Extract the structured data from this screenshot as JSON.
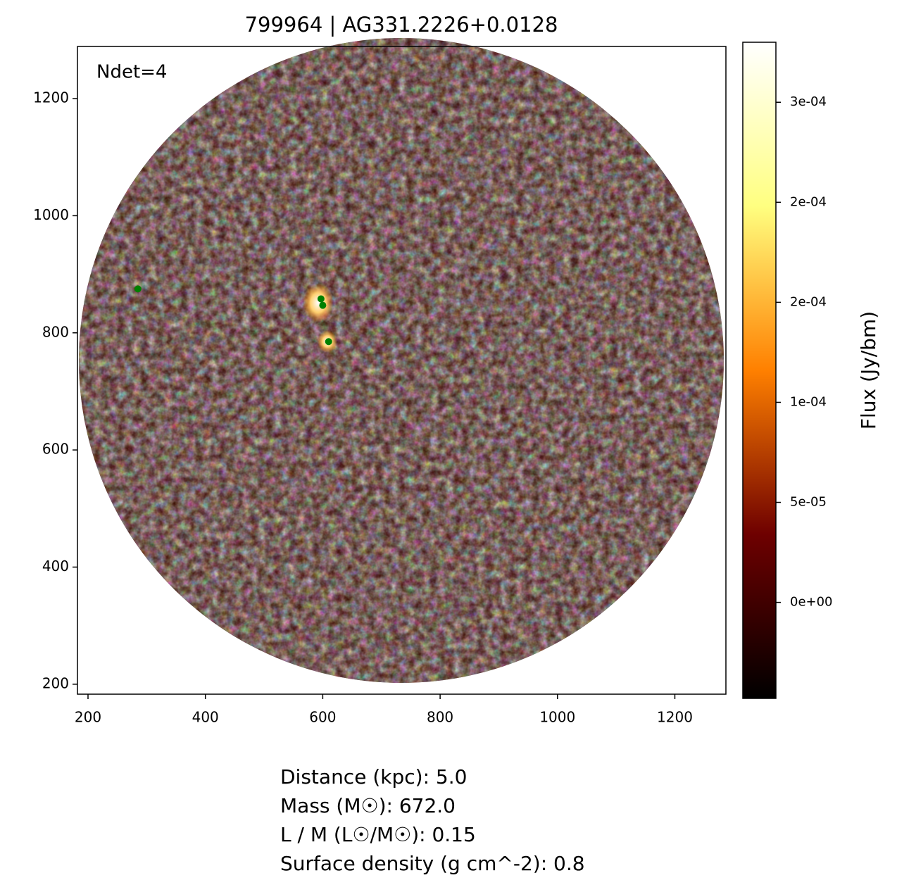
{
  "chart_data": {
    "type": "scatter",
    "title": "799964 | AG331.2226+0.0128",
    "annotation": "Ndet=4",
    "x": [
      285,
      597,
      600,
      610
    ],
    "y": [
      875,
      858,
      847,
      785
    ],
    "color": "#008000",
    "xlim": [
      182,
      1287
    ],
    "ylim": [
      183,
      1289
    ],
    "xticks": [
      200,
      400,
      600,
      800,
      1000,
      1200
    ],
    "yticks": [
      200,
      400,
      600,
      800,
      1000,
      1200
    ],
    "colorbar": {
      "label": "Flux (Jy/bm)",
      "lim": [
        -4.8e-05,
        0.00028
      ],
      "ticks": [
        {
          "value": 0,
          "label": "0e+00"
        },
        {
          "value": 5e-05,
          "label": "5e-05"
        },
        {
          "value": 0.0001,
          "label": "1e-04"
        },
        {
          "value": 0.00015,
          "label": "2e-04"
        },
        {
          "value": 0.0002,
          "label": "2e-04"
        },
        {
          "value": 0.00025,
          "label": "3e-04"
        }
      ]
    },
    "notes": [
      "Distance (kpc): 5.0",
      "Mass (M☉): 672.0",
      "L / M (L☉/M☉): 0.15",
      "Surface density (g cm^-2): 0.8"
    ]
  }
}
